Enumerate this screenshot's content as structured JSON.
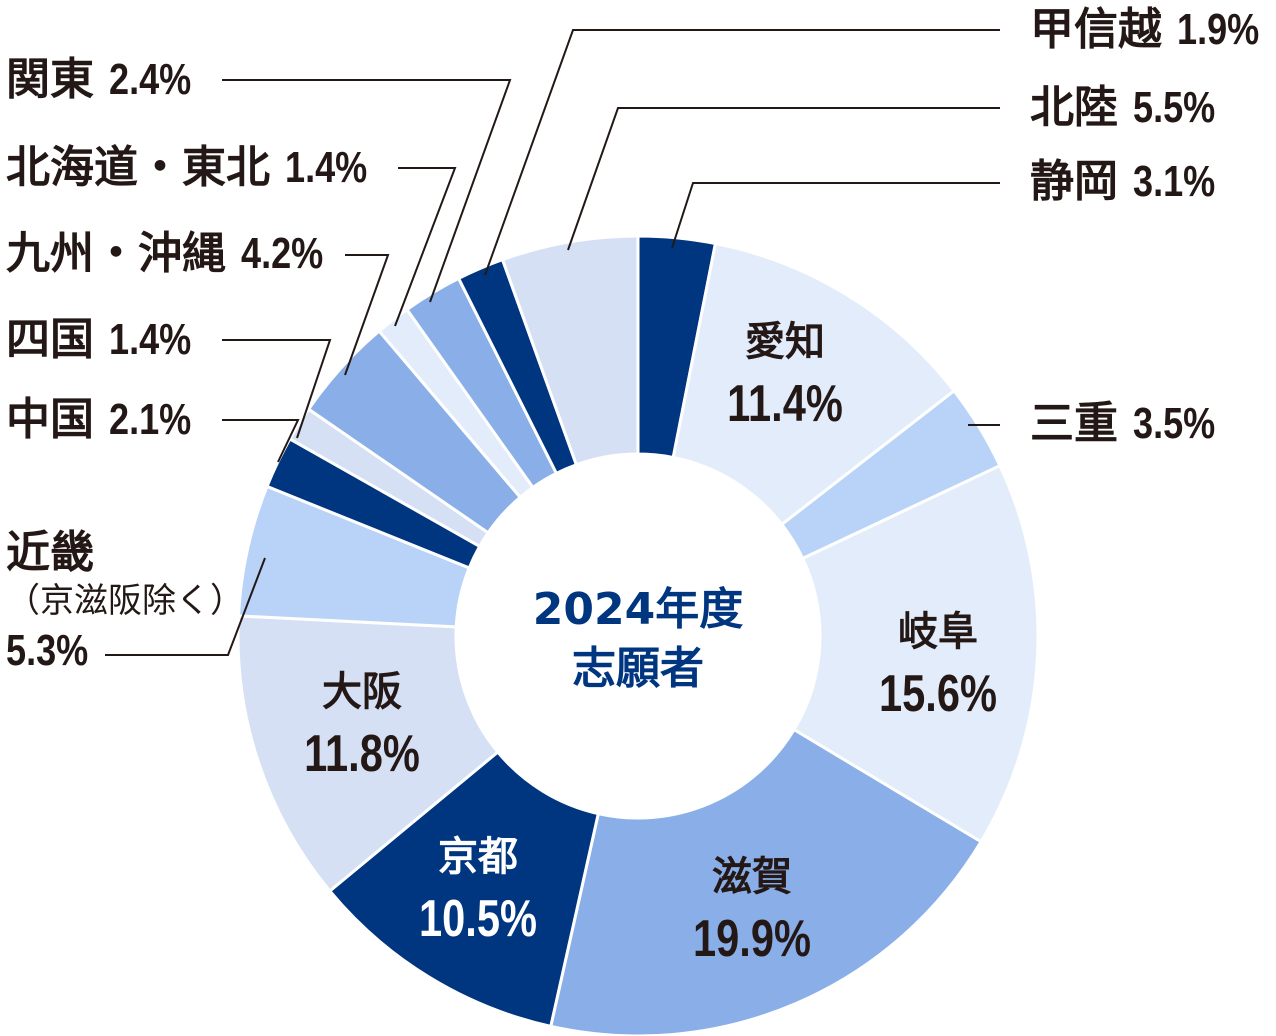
{
  "chart_data": {
    "type": "pie",
    "donut": true,
    "center_label": [
      "2024年度",
      "志願者"
    ],
    "unit": "%",
    "slices": [
      {
        "label": "静岡",
        "value": 3.1,
        "color": "#003580"
      },
      {
        "label": "愛知",
        "value": 11.4,
        "color": "#e3ecfb"
      },
      {
        "label": "三重",
        "value": 3.5,
        "color": "#b8d3f7"
      },
      {
        "label": "岐阜",
        "value": 15.6,
        "color": "#e3ecfb"
      },
      {
        "label": "滋賀",
        "value": 19.9,
        "color": "#8aafe8"
      },
      {
        "label": "京都",
        "value": 10.5,
        "color": "#003580"
      },
      {
        "label": "大阪",
        "value": 11.8,
        "color": "#d6e0f4"
      },
      {
        "label": "近畿",
        "sublabel": "（京滋阪除く）",
        "value": 5.3,
        "color": "#b8d3f7"
      },
      {
        "label": "中国",
        "value": 2.1,
        "color": "#003580"
      },
      {
        "label": "四国",
        "value": 1.4,
        "color": "#d6e0f4"
      },
      {
        "label": "九州・沖縄",
        "value": 4.2,
        "color": "#8aafe8"
      },
      {
        "label": "北海道・東北",
        "value": 1.4,
        "color": "#e3ecfb"
      },
      {
        "label": "関東",
        "value": 2.4,
        "color": "#8aafe8"
      },
      {
        "label": "甲信越",
        "value": 1.9,
        "color": "#003580"
      },
      {
        "label": "北陸",
        "value": 5.5,
        "color": "#d6e0f4"
      }
    ],
    "value_labels": [
      "3.1%",
      "11.4%",
      "3.5%",
      "15.6%",
      "19.9%",
      "10.5%",
      "11.8%",
      "5.3%",
      "2.1%",
      "1.4%",
      "4.2%",
      "1.4%",
      "2.4%",
      "1.9%",
      "5.5%"
    ]
  }
}
